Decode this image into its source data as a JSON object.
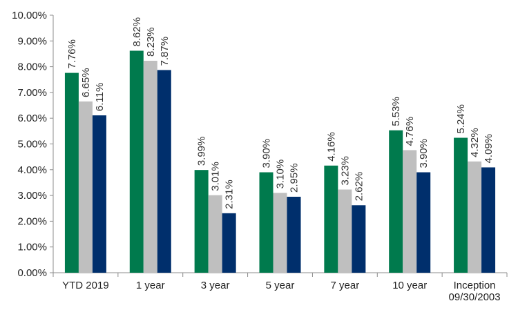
{
  "chart_data": {
    "type": "bar",
    "categories": [
      [
        "YTD 2019"
      ],
      [
        "1 year"
      ],
      [
        "3 year"
      ],
      [
        "5 year"
      ],
      [
        "7 year"
      ],
      [
        "10 year"
      ],
      [
        "Inception",
        "09/30/2003"
      ]
    ],
    "series": [
      {
        "values": [
          7.76,
          8.62,
          3.99,
          3.9,
          4.16,
          5.53,
          5.24
        ],
        "color": "#007A4D"
      },
      {
        "values": [
          6.65,
          8.23,
          3.01,
          3.1,
          3.23,
          4.76,
          4.32
        ],
        "color": "#BFBFBF"
      },
      {
        "values": [
          6.11,
          7.87,
          2.31,
          2.95,
          2.62,
          3.9,
          4.09
        ],
        "color": "#002F6C"
      }
    ],
    "yticks": [
      "0.00%",
      "1.00%",
      "2.00%",
      "3.00%",
      "4.00%",
      "5.00%",
      "6.00%",
      "7.00%",
      "8.00%",
      "9.00%",
      "10.00%"
    ],
    "ylim": [
      0,
      10
    ],
    "value_suffix": "%",
    "label_decimals": 2,
    "data_labels": "rotated, above bars",
    "grid": false,
    "legend": "none"
  }
}
